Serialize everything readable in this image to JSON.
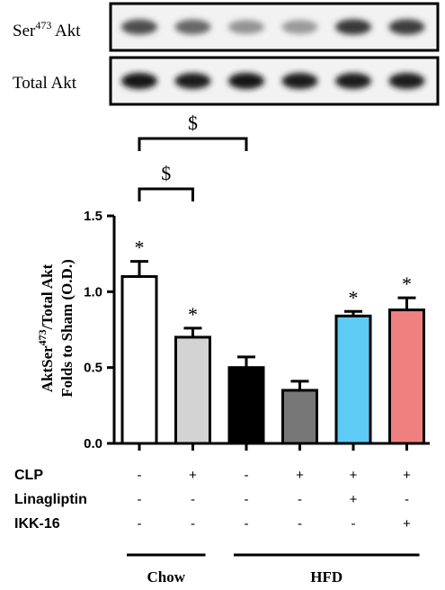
{
  "blots": [
    {
      "label_main": "Ser",
      "label_sup": "473",
      "label_rest": " Akt",
      "intensities": [
        0.72,
        0.6,
        0.38,
        0.35,
        0.82,
        0.8
      ]
    },
    {
      "label_main": "Total Akt",
      "intensities": [
        1.0,
        0.95,
        1.0,
        0.97,
        0.95,
        0.97
      ]
    }
  ],
  "chart_data": {
    "type": "bar",
    "ylabel_line1_pre": "AktSer",
    "ylabel_line1_sup": "473",
    "ylabel_line1_post": "/Total Akt",
    "ylabel_line2": "Folds to Sham (O.D.)",
    "ylim": [
      0,
      1.5
    ],
    "yticks": [
      "0.0",
      "0.5",
      "1.0",
      "1.5"
    ],
    "ytick_values": [
      0,
      0.5,
      1.0,
      1.5
    ],
    "values": [
      1.1,
      0.7,
      0.5,
      0.35,
      0.84,
      0.88
    ],
    "errors": [
      0.1,
      0.06,
      0.07,
      0.06,
      0.03,
      0.08
    ],
    "colors": [
      "#ffffff",
      "#d3d3d3",
      "#000000",
      "#777777",
      "#5ecbf5",
      "#f08080"
    ],
    "significance": [
      "*",
      "*",
      "",
      "",
      "*",
      "*"
    ],
    "brackets": [
      {
        "from": 0,
        "to": 2,
        "label": "$"
      },
      {
        "from": 0,
        "to": 1,
        "label": "$"
      }
    ]
  },
  "conditions": [
    {
      "label": "CLP",
      "signs": [
        "-",
        "+",
        "-",
        "+",
        "+",
        "+"
      ]
    },
    {
      "label": "Linagliptin",
      "signs": [
        "-",
        "-",
        "-",
        "-",
        "+",
        "-"
      ]
    },
    {
      "label": "IKK-16",
      "signs": [
        "-",
        "-",
        "-",
        "-",
        "-",
        "+"
      ]
    }
  ],
  "groups": [
    {
      "label": "Chow",
      "from": 0,
      "to": 1
    },
    {
      "label": "HFD",
      "from": 2,
      "to": 5
    }
  ]
}
